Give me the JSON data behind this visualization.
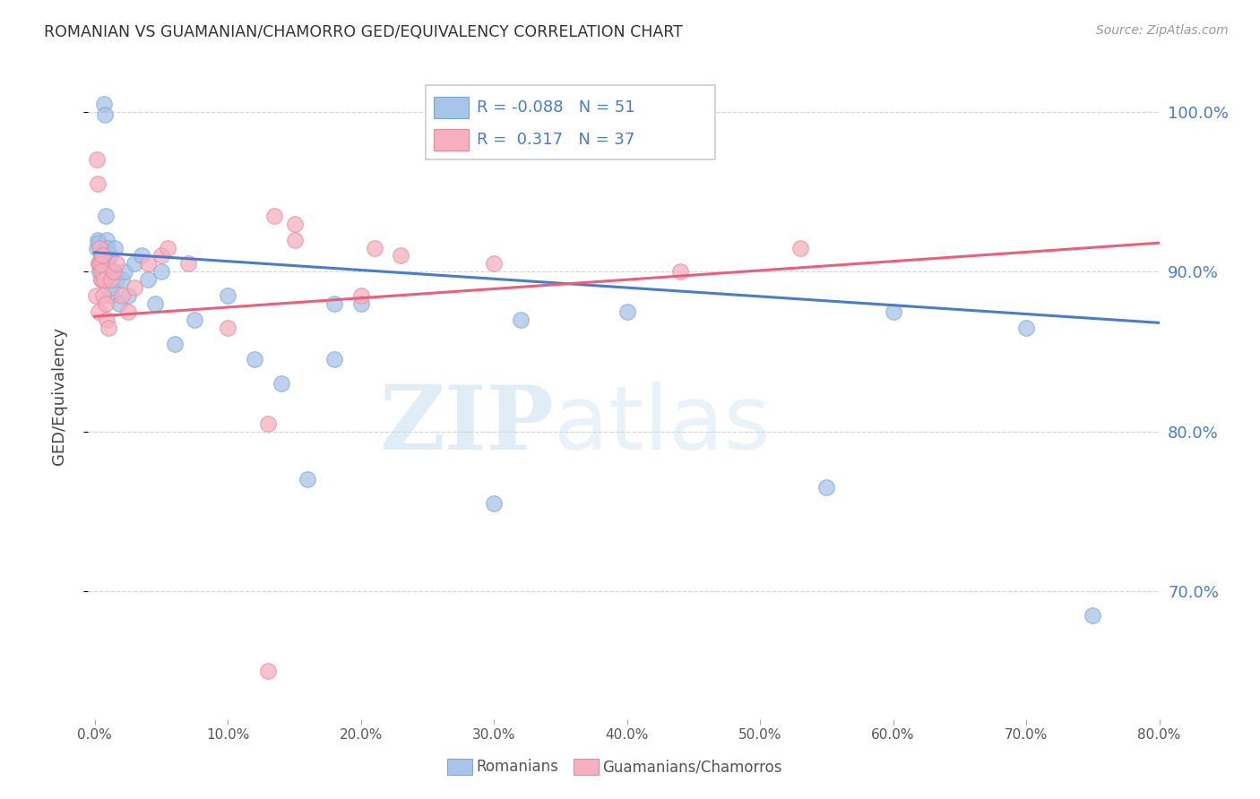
{
  "title": "ROMANIAN VS GUAMANIAN/CHAMORRO GED/EQUIVALENCY CORRELATION CHART",
  "source": "Source: ZipAtlas.com",
  "xlabel_vals": [
    0.0,
    10.0,
    20.0,
    30.0,
    40.0,
    50.0,
    60.0,
    70.0,
    80.0
  ],
  "xmin": -0.5,
  "xmax": 80.0,
  "ymin": 62.0,
  "ymax": 102.5,
  "right_ytick_vals": [
    70.0,
    80.0,
    90.0,
    100.0
  ],
  "blue_R": -0.088,
  "blue_N": 51,
  "pink_R": 0.317,
  "pink_N": 37,
  "blue_color": "#a8c4e8",
  "pink_color": "#f5afc0",
  "blue_edge_color": "#7aaad4",
  "pink_edge_color": "#e888a0",
  "blue_line_color": "#4a7cc7",
  "pink_line_color": "#e8607a",
  "legend_label_blue": "Romanians",
  "legend_label_pink": "Guamanians/Chamorros",
  "ylabel": "GED/Equivalency",
  "watermark_zip": "ZIP",
  "watermark_atlas": "atlas",
  "blue_trend_x0": 0.0,
  "blue_trend_x1": 80.0,
  "blue_trend_y0": 91.2,
  "blue_trend_y1": 86.8,
  "pink_trend_x0": 0.0,
  "pink_trend_x1": 80.0,
  "pink_trend_y0": 87.2,
  "pink_trend_y1": 91.8,
  "grid_color": "#d0d0d0",
  "right_tick_color": "#4a7cc7",
  "blue_scatter_x": [
    0.15,
    0.2,
    0.25,
    0.3,
    0.35,
    0.4,
    0.45,
    0.5,
    0.55,
    0.6,
    0.65,
    0.7,
    0.75,
    0.8,
    0.85,
    0.9,
    0.95,
    1.0,
    1.05,
    1.1,
    1.15,
    1.2,
    1.3,
    1.4,
    1.5,
    1.6,
    1.8,
    2.0,
    2.2,
    2.5,
    3.0,
    3.5,
    4.0,
    4.5,
    5.0,
    6.0,
    7.5,
    10.0,
    12.0,
    14.0,
    16.0,
    18.0,
    20.0,
    30.0,
    32.0,
    40.0,
    55.0,
    60.0,
    70.0,
    75.0,
    18.0
  ],
  "blue_scatter_y": [
    91.5,
    92.0,
    91.8,
    90.5,
    90.0,
    91.2,
    90.8,
    89.5,
    91.0,
    90.3,
    89.8,
    100.5,
    99.8,
    93.5,
    90.5,
    92.0,
    91.5,
    90.8,
    90.2,
    89.5,
    91.0,
    88.5,
    89.0,
    90.0,
    91.5,
    89.5,
    88.0,
    89.5,
    90.0,
    88.5,
    90.5,
    91.0,
    89.5,
    88.0,
    90.0,
    85.5,
    87.0,
    88.5,
    84.5,
    83.0,
    77.0,
    84.5,
    88.0,
    75.5,
    87.0,
    87.5,
    76.5,
    87.5,
    86.5,
    68.5,
    88.0
  ],
  "pink_scatter_x": [
    0.1,
    0.15,
    0.2,
    0.25,
    0.3,
    0.35,
    0.4,
    0.45,
    0.5,
    0.55,
    0.6,
    0.7,
    0.8,
    0.9,
    1.0,
    1.2,
    1.4,
    1.6,
    2.0,
    2.5,
    3.0,
    4.0,
    5.0,
    5.5,
    7.0,
    10.0,
    13.0,
    15.0,
    20.0,
    23.0,
    13.5,
    15.0,
    21.0,
    30.0,
    44.0,
    53.0,
    13.0
  ],
  "pink_scatter_y": [
    88.5,
    97.0,
    95.5,
    90.5,
    87.5,
    91.5,
    90.5,
    89.5,
    90.0,
    91.0,
    88.5,
    89.5,
    88.0,
    87.0,
    86.5,
    89.5,
    90.0,
    90.5,
    88.5,
    87.5,
    89.0,
    90.5,
    91.0,
    91.5,
    90.5,
    86.5,
    80.5,
    93.0,
    88.5,
    91.0,
    93.5,
    92.0,
    91.5,
    90.5,
    90.0,
    91.5,
    65.0
  ]
}
